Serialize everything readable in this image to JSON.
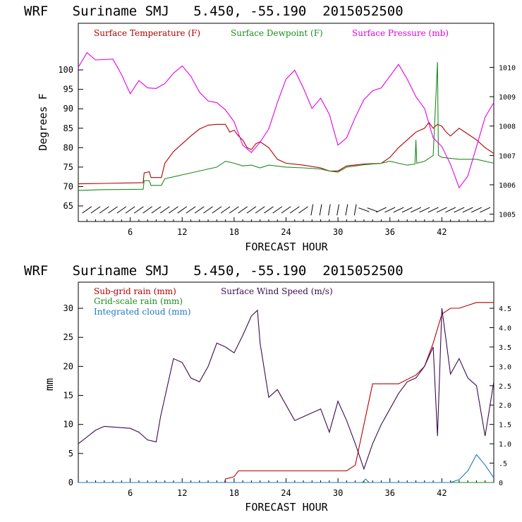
{
  "charts": [
    {
      "title": "WRF   Suriname SMJ   5.450, -55.190  2015052500",
      "ylabel": "Degrees F",
      "xlabel": "FORECAST HOUR",
      "x_ticks": [
        "6",
        "12",
        "18",
        "24",
        "30",
        "36",
        "42"
      ],
      "y_ticks": [
        "65",
        "70",
        "75",
        "80",
        "85",
        "90",
        "95",
        "100"
      ],
      "right_ticks": [
        "1005",
        "1006",
        "1007",
        "1008",
        "1009",
        "1010"
      ],
      "legend": [
        {
          "label": "Surface Temperature (F)",
          "color": "#b40000"
        },
        {
          "label": "Surface Dewpoint (F)",
          "color": "#1e8c1e"
        },
        {
          "label": "Surface Pressure (mb)",
          "color": "#e600e6"
        }
      ]
    },
    {
      "title": "WRF   Suriname SMJ   5.450, -55.190  2015052500",
      "ylabel": "mm",
      "xlabel": "FORECAST HOUR",
      "x_ticks": [
        "6",
        "12",
        "18",
        "24",
        "30",
        "36",
        "42"
      ],
      "y_ticks": [
        "0",
        "5",
        "10",
        "15",
        "20",
        "25",
        "30"
      ],
      "right_ticks": [
        "0",
        ".5",
        "1.0",
        "1.5",
        "2.0",
        "2.5",
        "3.0",
        "3.5",
        "4.0",
        "4.5"
      ],
      "legend": [
        {
          "label": "Sub-grid rain (mm)",
          "color": "#b40000"
        },
        {
          "label": "Surface Wind Speed (m/s)",
          "color": "#3c0a50"
        },
        {
          "label": "Grid-scale rain (mm)",
          "color": "#1e8c1e"
        },
        {
          "label": "Integrated cloud (mm)",
          "color": "#1e78c8"
        }
      ]
    }
  ],
  "chart_data": [
    {
      "type": "line",
      "title": "WRF   Suriname SMJ   5.450, -55.190  2015052500",
      "xlabel": "FORECAST HOUR",
      "ylabel": "Degrees F",
      "xlim": [
        0,
        48
      ],
      "ylim": [
        61,
        112
      ],
      "y2lim": [
        1004.75,
        1011.5
      ],
      "series": [
        {
          "name": "Surface Temperature (F)",
          "color": "#b40000",
          "axis": "left",
          "points": [
            [
              0,
              70.7
            ],
            [
              3,
              70.8
            ],
            [
              7.5,
              71.0
            ],
            [
              7.6,
              73.5
            ],
            [
              8.2,
              73.8
            ],
            [
              8.4,
              72.3
            ],
            [
              9.6,
              72.3
            ],
            [
              10,
              76
            ],
            [
              11,
              79
            ],
            [
              12,
              81
            ],
            [
              13,
              83
            ],
            [
              14,
              84.8
            ],
            [
              15,
              85.8
            ],
            [
              16,
              86
            ],
            [
              17,
              86
            ],
            [
              17.5,
              84
            ],
            [
              18,
              84.5
            ],
            [
              18.5,
              83
            ],
            [
              19,
              82
            ],
            [
              19.5,
              80
            ],
            [
              20,
              79.5
            ],
            [
              20.5,
              81
            ],
            [
              21,
              81.5
            ],
            [
              22,
              80
            ],
            [
              23,
              77
            ],
            [
              24,
              76
            ],
            [
              26,
              75.5
            ],
            [
              28,
              74.8
            ],
            [
              29,
              74
            ],
            [
              30,
              74
            ],
            [
              31,
              75.3
            ],
            [
              33,
              75.8
            ],
            [
              35,
              76
            ],
            [
              36,
              77.5
            ],
            [
              37,
              80
            ],
            [
              38,
              82
            ],
            [
              39,
              84
            ],
            [
              40,
              85
            ],
            [
              40.5,
              86.5
            ],
            [
              41,
              85
            ],
            [
              41.5,
              86
            ],
            [
              42,
              85.5
            ],
            [
              42.5,
              84
            ],
            [
              43,
              83
            ],
            [
              44,
              85
            ],
            [
              45,
              83.5
            ],
            [
              46,
              82
            ],
            [
              47,
              80
            ],
            [
              48,
              78.5
            ]
          ]
        },
        {
          "name": "Surface Dewpoint (F)",
          "color": "#1e8c1e",
          "axis": "left",
          "points": [
            [
              0,
              69
            ],
            [
              3,
              69.2
            ],
            [
              7.5,
              69.3
            ],
            [
              7.6,
              71.5
            ],
            [
              8.2,
              71.5
            ],
            [
              8.4,
              70.3
            ],
            [
              9.6,
              70.3
            ],
            [
              10,
              72
            ],
            [
              12,
              73
            ],
            [
              14,
              74
            ],
            [
              16,
              75
            ],
            [
              17,
              76.5
            ],
            [
              18,
              76
            ],
            [
              19,
              75.3
            ],
            [
              20,
              75.5
            ],
            [
              21,
              74.8
            ],
            [
              22,
              75.5
            ],
            [
              24,
              75
            ],
            [
              26,
              74.8
            ],
            [
              28,
              74.5
            ],
            [
              29,
              74
            ],
            [
              30,
              73.7
            ],
            [
              31,
              75
            ],
            [
              33,
              75.6
            ],
            [
              35,
              76
            ],
            [
              36,
              76.5
            ],
            [
              37,
              76
            ],
            [
              38,
              75.5
            ],
            [
              38.9,
              75.8
            ],
            [
              39,
              82
            ],
            [
              39.1,
              76
            ],
            [
              40,
              76.5
            ],
            [
              41,
              78
            ],
            [
              41.5,
              102
            ],
            [
              41.6,
              78
            ],
            [
              42,
              77.5
            ],
            [
              44,
              77
            ],
            [
              46,
              77
            ],
            [
              48,
              76
            ]
          ]
        },
        {
          "name": "Surface Pressure (mb)",
          "color": "#e600e6",
          "axis": "right",
          "points": [
            [
              0,
              1010
            ],
            [
              1,
              1010.5
            ],
            [
              2,
              1010.25
            ],
            [
              4,
              1010.28
            ],
            [
              5,
              1009.75
            ],
            [
              6,
              1009.1
            ],
            [
              7,
              1009.55
            ],
            [
              8,
              1009.3
            ],
            [
              9,
              1009.28
            ],
            [
              10,
              1009.45
            ],
            [
              11,
              1009.8
            ],
            [
              12,
              1010.05
            ],
            [
              13,
              1009.7
            ],
            [
              14,
              1009.15
            ],
            [
              15,
              1008.85
            ],
            [
              16,
              1008.8
            ],
            [
              17,
              1008.55
            ],
            [
              18,
              1008.15
            ],
            [
              19,
              1007.35
            ],
            [
              20,
              1007.1
            ],
            [
              21,
              1007.45
            ],
            [
              22,
              1007.9
            ],
            [
              23,
              1008.8
            ],
            [
              24,
              1009.6
            ],
            [
              25,
              1009.9
            ],
            [
              26,
              1009.3
            ],
            [
              27,
              1008.6
            ],
            [
              28,
              1008.95
            ],
            [
              29,
              1008.4
            ],
            [
              30,
              1007.35
            ],
            [
              31,
              1007.6
            ],
            [
              32,
              1008.3
            ],
            [
              33,
              1008.9
            ],
            [
              34,
              1009.2
            ],
            [
              35,
              1009.3
            ],
            [
              36,
              1009.7
            ],
            [
              37,
              1010.1
            ],
            [
              38,
              1009.6
            ],
            [
              39,
              1009.0
            ],
            [
              40,
              1008.6
            ],
            [
              41,
              1007.6
            ],
            [
              42,
              1007.3
            ],
            [
              43,
              1006.7
            ],
            [
              44,
              1005.9
            ],
            [
              45,
              1006.3
            ],
            [
              46,
              1007.3
            ],
            [
              47,
              1008.3
            ],
            [
              48,
              1008.8
            ]
          ]
        }
      ],
      "wind_barbs": {
        "hours_from": 1,
        "hours_to": 47,
        "y": 64
      }
    },
    {
      "type": "line",
      "title": "WRF   Suriname SMJ   5.450, -55.190  2015052500",
      "xlabel": "FORECAST HOUR",
      "ylabel": "mm",
      "xlim": [
        0,
        48
      ],
      "ylim": [
        0,
        34.5
      ],
      "y2lim": [
        0,
        5.175
      ],
      "series": [
        {
          "name": "Sub-grid rain (mm)",
          "color": "#b40000",
          "axis": "left",
          "points": [
            [
              0,
              0
            ],
            [
              16.9,
              0
            ],
            [
              17,
              0.6
            ],
            [
              18,
              1.0
            ],
            [
              18.5,
              2.0
            ],
            [
              31,
              2.0
            ],
            [
              32,
              3
            ],
            [
              34,
              17
            ],
            [
              35,
              17
            ],
            [
              37,
              17
            ],
            [
              39,
              18.5
            ],
            [
              40,
              20
            ],
            [
              41,
              24
            ],
            [
              42,
              29
            ],
            [
              43,
              30
            ],
            [
              44,
              30
            ],
            [
              45,
              30.5
            ],
            [
              46,
              31
            ],
            [
              48,
              31
            ]
          ]
        },
        {
          "name": "Surface Wind Speed (m/s)",
          "color": "#3c0a50",
          "axis": "right",
          "points": [
            [
              0,
              1.0
            ],
            [
              2,
              1.35
            ],
            [
              3,
              1.45
            ],
            [
              6,
              1.4
            ],
            [
              7,
              1.3
            ],
            [
              8,
              1.1
            ],
            [
              9,
              1.05
            ],
            [
              9.5,
              1.7
            ],
            [
              10,
              2.2
            ],
            [
              11,
              3.2
            ],
            [
              12,
              3.1
            ],
            [
              13,
              2.7
            ],
            [
              14,
              2.6
            ],
            [
              15,
              3.0
            ],
            [
              16,
              3.6
            ],
            [
              17,
              3.5
            ],
            [
              18,
              3.35
            ],
            [
              19,
              3.8
            ],
            [
              20,
              4.3
            ],
            [
              20.7,
              4.45
            ],
            [
              21,
              3.6
            ],
            [
              22,
              2.2
            ],
            [
              23,
              2.4
            ],
            [
              24,
              2.0
            ],
            [
              25,
              1.6
            ],
            [
              26,
              1.7
            ],
            [
              27,
              1.8
            ],
            [
              28,
              1.9
            ],
            [
              29,
              1.3
            ],
            [
              30,
              2.1
            ],
            [
              31,
              1.6
            ],
            [
              32,
              1.0
            ],
            [
              33,
              0.35
            ],
            [
              34,
              1.0
            ],
            [
              35,
              1.5
            ],
            [
              36,
              1.9
            ],
            [
              37,
              2.3
            ],
            [
              38,
              2.6
            ],
            [
              39,
              2.7
            ],
            [
              40,
              3.0
            ],
            [
              41,
              3.5
            ],
            [
              41.5,
              1.2
            ],
            [
              42,
              4.5
            ],
            [
              43,
              2.8
            ],
            [
              44,
              3.2
            ],
            [
              45,
              2.7
            ],
            [
              46,
              2.5
            ],
            [
              47,
              1.2
            ],
            [
              48,
              2.6
            ]
          ]
        },
        {
          "name": "Grid-scale rain (mm)",
          "color": "#1e8c1e",
          "axis": "left",
          "points": [
            [
              0,
              0
            ],
            [
              48,
              0
            ]
          ]
        },
        {
          "name": "Integrated cloud (mm)",
          "color": "#1e78c8",
          "axis": "left",
          "points": [
            [
              0,
              0
            ],
            [
              32.8,
              0
            ],
            [
              33.2,
              0.6
            ],
            [
              33.6,
              0
            ],
            [
              43,
              0
            ],
            [
              44,
              0.5
            ],
            [
              45,
              2
            ],
            [
              46,
              4.8
            ],
            [
              47,
              3
            ],
            [
              48,
              0.8
            ]
          ]
        }
      ]
    }
  ]
}
